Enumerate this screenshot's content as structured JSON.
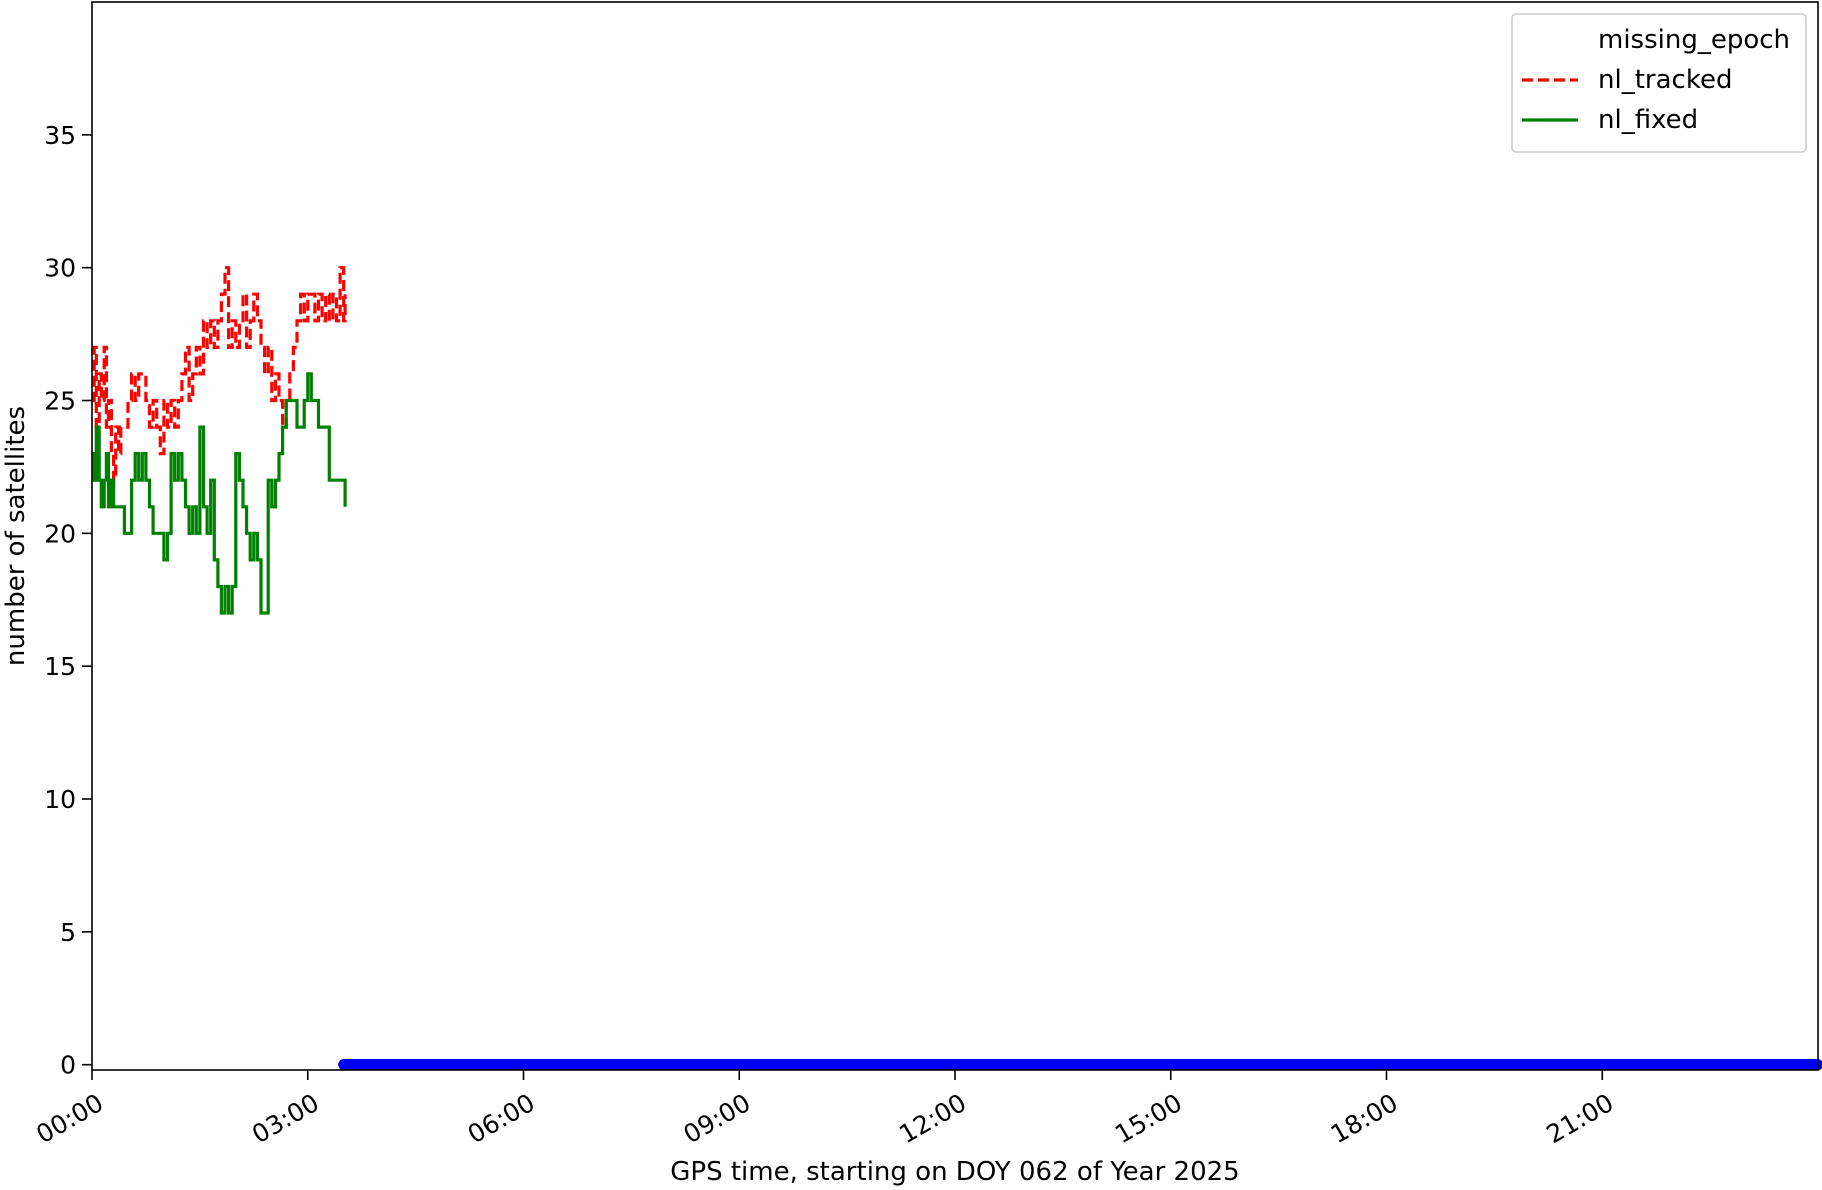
{
  "chart_data": {
    "type": "line",
    "xlabel": "GPS time, starting on DOY 062 of Year 2025",
    "ylabel": "number of satellites",
    "xlim": [
      0,
      24
    ],
    "ylim": [
      -0.2,
      40
    ],
    "x_unit": "hours",
    "xticks": [
      0,
      3,
      6,
      9,
      12,
      15,
      18,
      21
    ],
    "xtick_labels": [
      "00:00",
      "03:00",
      "06:00",
      "09:00",
      "12:00",
      "15:00",
      "18:00",
      "21:00"
    ],
    "yticks": [
      0,
      5,
      10,
      15,
      20,
      25,
      30,
      35
    ],
    "ytick_labels": [
      "0",
      "5",
      "10",
      "15",
      "20",
      "25",
      "30",
      "35"
    ],
    "grid": false,
    "legend_position": "top-right",
    "series": [
      {
        "name": "missing_epoch",
        "style": "markers",
        "color": "#0000ff",
        "x_range": [
          3.5,
          24
        ],
        "y": 0
      },
      {
        "name": "nl_tracked",
        "style": "dashed",
        "color": "#ff0000",
        "x": [
          0,
          0.03,
          0.06,
          0.1,
          0.13,
          0.17,
          0.2,
          0.23,
          0.27,
          0.3,
          0.33,
          0.37,
          0.4,
          0.45,
          0.5,
          0.55,
          0.6,
          0.65,
          0.7,
          0.75,
          0.8,
          0.85,
          0.9,
          0.95,
          1.0,
          1.05,
          1.1,
          1.15,
          1.2,
          1.25,
          1.3,
          1.35,
          1.4,
          1.45,
          1.5,
          1.55,
          1.6,
          1.65,
          1.7,
          1.75,
          1.8,
          1.85,
          1.9,
          1.95,
          2.0,
          2.05,
          2.1,
          2.15,
          2.2,
          2.25,
          2.3,
          2.35,
          2.4,
          2.45,
          2.5,
          2.55,
          2.6,
          2.65,
          2.7,
          2.75,
          2.8,
          2.85,
          2.9,
          2.95,
          3.0,
          3.05,
          3.1,
          3.15,
          3.2,
          3.25,
          3.3,
          3.35,
          3.4,
          3.45,
          3.5,
          3.52
        ],
        "y": [
          25,
          27,
          24,
          26,
          25,
          27,
          24,
          25,
          23,
          22,
          24,
          23,
          24,
          24,
          25,
          26,
          25,
          26,
          26,
          25,
          24,
          25,
          24,
          23,
          25,
          24,
          25,
          24,
          25,
          26,
          27,
          25,
          26,
          27,
          26,
          28,
          27,
          28,
          27,
          28,
          29,
          30,
          27,
          28,
          27,
          28,
          29,
          27,
          28,
          29,
          28,
          27,
          26,
          27,
          25,
          26,
          25,
          24,
          25,
          26,
          27,
          28,
          29,
          28,
          29,
          29,
          28,
          29,
          28,
          29,
          28,
          29,
          28,
          30,
          28,
          29
        ]
      },
      {
        "name": "nl_fixed",
        "style": "solid",
        "color": "#008000",
        "x": [
          0,
          0.03,
          0.06,
          0.1,
          0.13,
          0.17,
          0.2,
          0.23,
          0.27,
          0.3,
          0.33,
          0.37,
          0.4,
          0.45,
          0.5,
          0.55,
          0.6,
          0.65,
          0.7,
          0.75,
          0.8,
          0.85,
          0.9,
          0.95,
          1.0,
          1.05,
          1.1,
          1.15,
          1.2,
          1.25,
          1.3,
          1.35,
          1.4,
          1.45,
          1.5,
          1.55,
          1.6,
          1.65,
          1.7,
          1.75,
          1.8,
          1.85,
          1.9,
          1.95,
          2.0,
          2.05,
          2.1,
          2.15,
          2.2,
          2.25,
          2.3,
          2.35,
          2.4,
          2.45,
          2.5,
          2.55,
          2.6,
          2.65,
          2.7,
          2.75,
          2.8,
          2.85,
          2.9,
          2.95,
          3.0,
          3.05,
          3.1,
          3.15,
          3.2,
          3.25,
          3.3,
          3.35,
          3.4,
          3.45,
          3.5,
          3.52
        ],
        "y": [
          23,
          22,
          24,
          22,
          21,
          22,
          23,
          21,
          22,
          21,
          21,
          21,
          21,
          20,
          20,
          22,
          23,
          22,
          23,
          22,
          21,
          20,
          20,
          20,
          19,
          20,
          23,
          22,
          23,
          22,
          21,
          20,
          21,
          20,
          24,
          21,
          20,
          22,
          19,
          18,
          17,
          18,
          17,
          18,
          23,
          22,
          21,
          20,
          19,
          20,
          19,
          17,
          17,
          22,
          21,
          22,
          23,
          24,
          25,
          25,
          25,
          24,
          24,
          25,
          26,
          25,
          25,
          24,
          24,
          24,
          22,
          22,
          22,
          22,
          22,
          21
        ]
      }
    ]
  }
}
